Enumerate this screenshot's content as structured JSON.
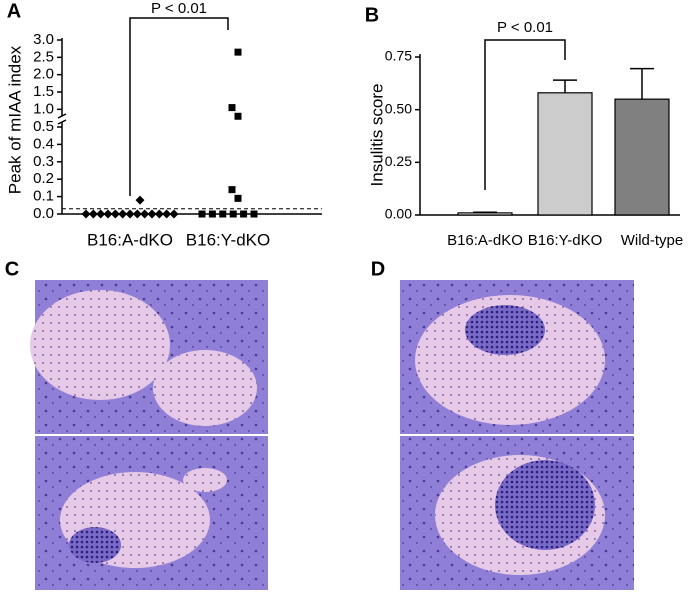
{
  "chart_data": [
    {
      "type": "scatter",
      "panel": "A",
      "ylabel": "Peak of mIAA index",
      "annotation": "P < 0.01",
      "categories": [
        "B16:A-dKO",
        "B16:Y-dKO"
      ],
      "values": [
        [
          0.08,
          0,
          0,
          0,
          0,
          0,
          0,
          0,
          0,
          0,
          0,
          0,
          0,
          0
        ],
        [
          2.65,
          1.05,
          0.8,
          0.14,
          0.09,
          0,
          0,
          0,
          0,
          0,
          0
        ]
      ],
      "markers": [
        "diamond",
        "square"
      ],
      "color": "#000000",
      "ylim": [
        0,
        3.0
      ],
      "ybreak": [
        0.5,
        0.75
      ],
      "yticks": [
        {
          "value": 0,
          "label": "0.0"
        },
        0.1,
        0.2,
        0.3,
        0.4,
        0.5,
        {
          "value": 1,
          "label": "1.0"
        },
        1.5,
        {
          "value": 2,
          "label": "2.0"
        },
        2.5,
        {
          "value": 3,
          "label": "3.0"
        }
      ],
      "threshold": 0.03
    },
    {
      "type": "bar",
      "panel": "B",
      "ylabel": "Insulitis score",
      "annotation": "P < 0.01",
      "categories": [
        "B16:A-dKO",
        "B16:Y-dKO",
        "Wild-type"
      ],
      "values": [
        0.01,
        0.58,
        0.55
      ],
      "errors": [
        0.003,
        0.06,
        0.145
      ],
      "colors": [
        "#f2f2f2",
        "#cccccc",
        "#808080"
      ],
      "ylim": [
        0,
        0.75
      ],
      "yticks": [
        {
          "value": 0,
          "label": "0.00"
        },
        {
          "value": 0.25,
          "label": "0.25"
        },
        {
          "value": 0.5,
          "label": "0.50"
        },
        {
          "value": 0.75,
          "label": "0.75"
        }
      ]
    }
  ],
  "image_panels": [
    {
      "label": "C"
    },
    {
      "label": "D"
    }
  ]
}
